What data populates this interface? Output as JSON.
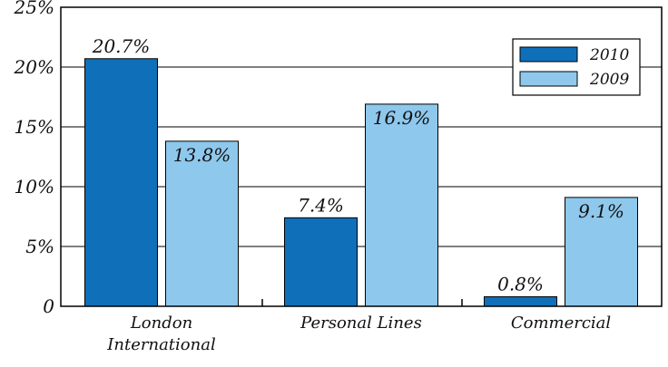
{
  "chart_data": {
    "type": "bar",
    "categories": [
      "London International",
      "Personal Lines",
      "Commercial"
    ],
    "series": [
      {
        "name": "2010",
        "values": [
          20.7,
          7.4,
          0.8
        ],
        "labels": [
          "20.7%",
          "7.4%",
          "0.8%"
        ]
      },
      {
        "name": "2009",
        "values": [
          13.8,
          16.9,
          9.1
        ],
        "labels": [
          "13.8%",
          "16.9%",
          "9.1%"
        ]
      }
    ],
    "y_ticks": [
      "0",
      "5%",
      "10%",
      "15%",
      "20%",
      "25%"
    ],
    "ylim": [
      0,
      25
    ],
    "grid": true,
    "legend_position": "top-right",
    "colors": {
      "2010": "#0f6fb8",
      "2009": "#8ec8ec",
      "axis": "#000000",
      "grid": "#000000"
    }
  }
}
